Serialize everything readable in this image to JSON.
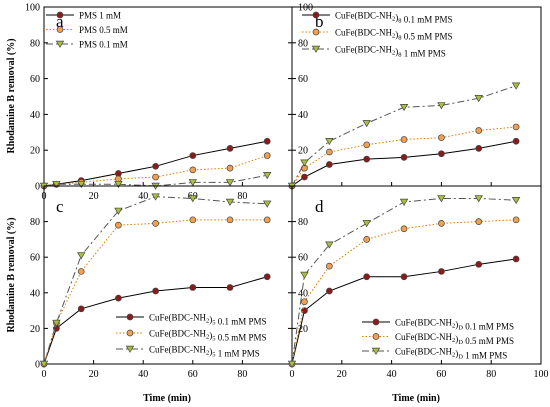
{
  "figure": {
    "ylabel": "Rhodamine B removal (%)",
    "xlabel": "Time (min)"
  },
  "chart_data": [
    {
      "type": "line",
      "panel": "a",
      "xlim": [
        0,
        100
      ],
      "ylim": [
        0,
        100
      ],
      "xticks": [
        0,
        20,
        40,
        60,
        80
      ],
      "yticks": [
        0,
        20,
        40,
        60,
        80,
        100
      ],
      "legend_position": "top-left",
      "series": [
        {
          "name": "PMS 1 mM",
          "label": {
            "pre": "PMS 1 mM",
            "sub": "",
            "post": ""
          },
          "style": "solid",
          "color": "#000000",
          "marker": "circle",
          "marker_color": "#8b1a1a",
          "x": [
            0,
            5,
            15,
            30,
            45,
            60,
            75,
            90
          ],
          "y": [
            0,
            1,
            3,
            7,
            11,
            17,
            21,
            25
          ]
        },
        {
          "name": "PMS 0.5 mM",
          "label": {
            "pre": "PMS 0.5 mM",
            "sub": "",
            "post": ""
          },
          "style": "dotted",
          "color": "#e07b00",
          "marker": "circle",
          "marker_color": "#f0a050",
          "x": [
            0,
            5,
            15,
            30,
            45,
            60,
            75,
            90
          ],
          "y": [
            0,
            1,
            2,
            4,
            5,
            9,
            10,
            17
          ]
        },
        {
          "name": "PMS 0.1 mM",
          "label": {
            "pre": "PMS 0.1 mM",
            "sub": "",
            "post": ""
          },
          "style": "dashed",
          "color": "#555555",
          "marker": "triangle",
          "marker_color": "#a8c040",
          "x": [
            0,
            5,
            15,
            30,
            45,
            60,
            75,
            90
          ],
          "y": [
            0,
            1,
            1,
            1,
            0,
            2,
            2,
            6
          ]
        }
      ]
    },
    {
      "type": "line",
      "panel": "b",
      "xlim": [
        0,
        100
      ],
      "ylim": [
        0,
        100
      ],
      "xticks": [],
      "yticks": [
        20,
        40,
        60,
        80,
        100
      ],
      "legend_position": "top-left",
      "series": [
        {
          "name": "CuFe(BDC-NH2)8 0.1 mM PMS",
          "label": {
            "pre": "CuFe(BDC-NH",
            "sub": "2",
            "post": ")",
            "sub2": "8",
            "post2": " 0.1 mM PMS"
          },
          "style": "solid",
          "color": "#000000",
          "marker": "circle",
          "marker_color": "#8b1a1a",
          "x": [
            0,
            5,
            15,
            30,
            45,
            60,
            75,
            90
          ],
          "y": [
            0,
            5,
            12,
            15,
            16,
            18,
            21,
            25
          ]
        },
        {
          "name": "CuFe(BDC-NH2)8 0.5 mM PMS",
          "label": {
            "pre": "CuFe(BDC-NH",
            "sub": "2",
            "post": ")",
            "sub2": "8",
            "post2": " 0.5 mM PMS"
          },
          "style": "dotted",
          "color": "#e07b00",
          "marker": "circle",
          "marker_color": "#f0a050",
          "x": [
            0,
            5,
            15,
            30,
            45,
            60,
            75,
            90
          ],
          "y": [
            0,
            10,
            19,
            23,
            26,
            27,
            31,
            33
          ]
        },
        {
          "name": "CuFe(BDC-NH2)8 1 mM PMS",
          "label": {
            "pre": "CuFe(BDC-NH",
            "sub": "2",
            "post": ")",
            "sub2": "8",
            "post2": " 1 mM PMS"
          },
          "style": "dashed",
          "color": "#555555",
          "marker": "triangle",
          "marker_color": "#a8c040",
          "x": [
            0,
            5,
            15,
            30,
            45,
            60,
            75,
            90
          ],
          "y": [
            0,
            13,
            25,
            35,
            44,
            45,
            49,
            56
          ]
        }
      ]
    },
    {
      "type": "line",
      "panel": "c",
      "xlim": [
        0,
        100
      ],
      "ylim": [
        0,
        100
      ],
      "xticks": [
        0,
        20,
        40,
        60,
        80
      ],
      "yticks": [
        0,
        20,
        40,
        60,
        80
      ],
      "legend_position": "bottom-right",
      "series": [
        {
          "name": "CuFe(BDC-NH2)5 0.1 mM PMS",
          "label": {
            "pre": "CuFe(BDC-NH",
            "sub": "2",
            "post": ")",
            "sub2": "5",
            "post2": " 0.1 mM PMS"
          },
          "style": "solid",
          "color": "#000000",
          "marker": "circle",
          "marker_color": "#8b1a1a",
          "x": [
            0,
            5,
            15,
            30,
            45,
            60,
            75,
            90
          ],
          "y": [
            0,
            20,
            31,
            37,
            41,
            43,
            43,
            49
          ]
        },
        {
          "name": "CuFe(BDC-NH2)5 0.5 mM PMS",
          "label": {
            "pre": "CuFe(BDC-NH",
            "sub": "2",
            "post": ")",
            "sub2": "5",
            "post2": " 0.5 mM PMS"
          },
          "style": "dotted",
          "color": "#e07b00",
          "marker": "circle",
          "marker_color": "#f0a050",
          "x": [
            0,
            5,
            15,
            30,
            45,
            60,
            75,
            90
          ],
          "y": [
            0,
            23,
            52,
            78,
            79,
            81,
            81,
            81
          ]
        },
        {
          "name": "CuFe(BDC-NH2)5 1 mM PMS",
          "label": {
            "pre": "CuFe(BDC-NH",
            "sub": "2",
            "post": ")",
            "sub2": "5",
            "post2": "  1 mM PMS"
          },
          "style": "dashed",
          "color": "#555555",
          "marker": "triangle",
          "marker_color": "#a8c040",
          "x": [
            0,
            5,
            15,
            30,
            45,
            60,
            75,
            90
          ],
          "y": [
            0,
            23,
            61,
            86,
            94,
            93,
            91,
            90
          ]
        }
      ]
    },
    {
      "type": "line",
      "panel": "d",
      "xlim": [
        0,
        100
      ],
      "ylim": [
        0,
        100
      ],
      "xticks": [
        0,
        20,
        40,
        60,
        80,
        100
      ],
      "yticks": [
        20,
        40,
        60,
        80
      ],
      "legend_position": "bottom-right",
      "series": [
        {
          "name": "CuFe(BDC-NH2)D 0.1 mM PMS",
          "label": {
            "pre": "CuFe(BDC-NH",
            "sub": "2",
            "post": ")",
            "sub2": "D",
            "post2": " 0.1 mM PMS"
          },
          "style": "solid",
          "color": "#000000",
          "marker": "circle",
          "marker_color": "#8b1a1a",
          "x": [
            0,
            5,
            15,
            30,
            45,
            60,
            75,
            90
          ],
          "y": [
            0,
            30,
            41,
            49,
            49,
            52,
            56,
            59
          ]
        },
        {
          "name": "CuFe(BDC-NH2)D 0.5 mM PMS",
          "label": {
            "pre": "CuFe(BDC-NH",
            "sub": "2",
            "post": ")",
            "sub2": "D",
            "post2": " 0.5 mM PMS"
          },
          "style": "dotted",
          "color": "#e07b00",
          "marker": "circle",
          "marker_color": "#f0a050",
          "x": [
            0,
            5,
            15,
            30,
            45,
            60,
            75,
            90
          ],
          "y": [
            0,
            35,
            55,
            70,
            76,
            79,
            80,
            81
          ]
        },
        {
          "name": "CuFe(BDC-NH2)D 1 mM PMS",
          "label": {
            "pre": "CuFe(BDC-NH",
            "sub": "2",
            "post": ")",
            "sub2": "D",
            "post2": " 1 mM PMS"
          },
          "style": "dashed",
          "color": "#555555",
          "marker": "triangle",
          "marker_color": "#a8c040",
          "x": [
            0,
            5,
            15,
            30,
            45,
            60,
            75,
            90
          ],
          "y": [
            0,
            50,
            67,
            79,
            91,
            93,
            93,
            92
          ]
        }
      ]
    }
  ]
}
